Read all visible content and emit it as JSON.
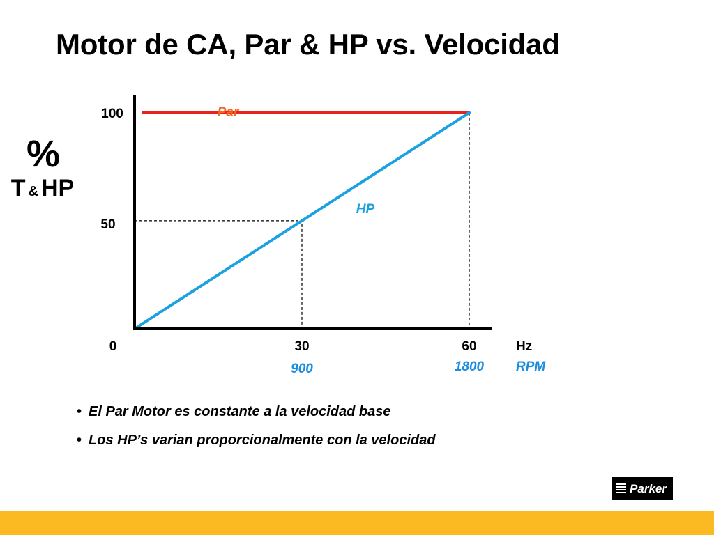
{
  "slide": {
    "title": "Motor de CA, Par & HP vs. Velocidad",
    "footer_color": "#FBBA22"
  },
  "y_axis_label": {
    "percent": "%",
    "t": "T",
    "amp": "&",
    "hp": "HP"
  },
  "chart_data": {
    "type": "line",
    "x": [
      0,
      30,
      60
    ],
    "xlim": [
      0,
      64
    ],
    "ylim": [
      0,
      108
    ],
    "x_tick_labels": [
      "0",
      "30",
      "60"
    ],
    "x_secondary_tick_labels": [
      "900",
      "1800"
    ],
    "x_units": "Hz",
    "x_secondary_units": "RPM",
    "y_tick_labels": [
      "0",
      "50",
      "100"
    ],
    "y_ticks": [
      50,
      100
    ],
    "series": [
      {
        "name": "Par",
        "x": [
          1.5,
          60
        ],
        "y": [
          100,
          100
        ],
        "color": "#E8221E"
      },
      {
        "name": "HP",
        "x": [
          0,
          60
        ],
        "y": [
          0,
          100
        ],
        "color": "#1BA1E2"
      }
    ],
    "guides": [
      {
        "from": [
          0,
          50
        ],
        "corner": [
          30,
          50
        ],
        "to": [
          30,
          0
        ]
      },
      {
        "from": [
          60,
          100
        ],
        "to": [
          60,
          0
        ]
      }
    ],
    "colors": {
      "axis": "#000000",
      "secondary_label": "#1B8DE0",
      "par_label": "#F26522",
      "hp_label": "#1BA1E2"
    }
  },
  "bullets": [
    "El Par Motor es constante a la velocidad base",
    "Los HP’s varian proporcionalmente con la velocidad"
  ],
  "bullet_marker": "•",
  "logo": {
    "text": "Parker"
  }
}
